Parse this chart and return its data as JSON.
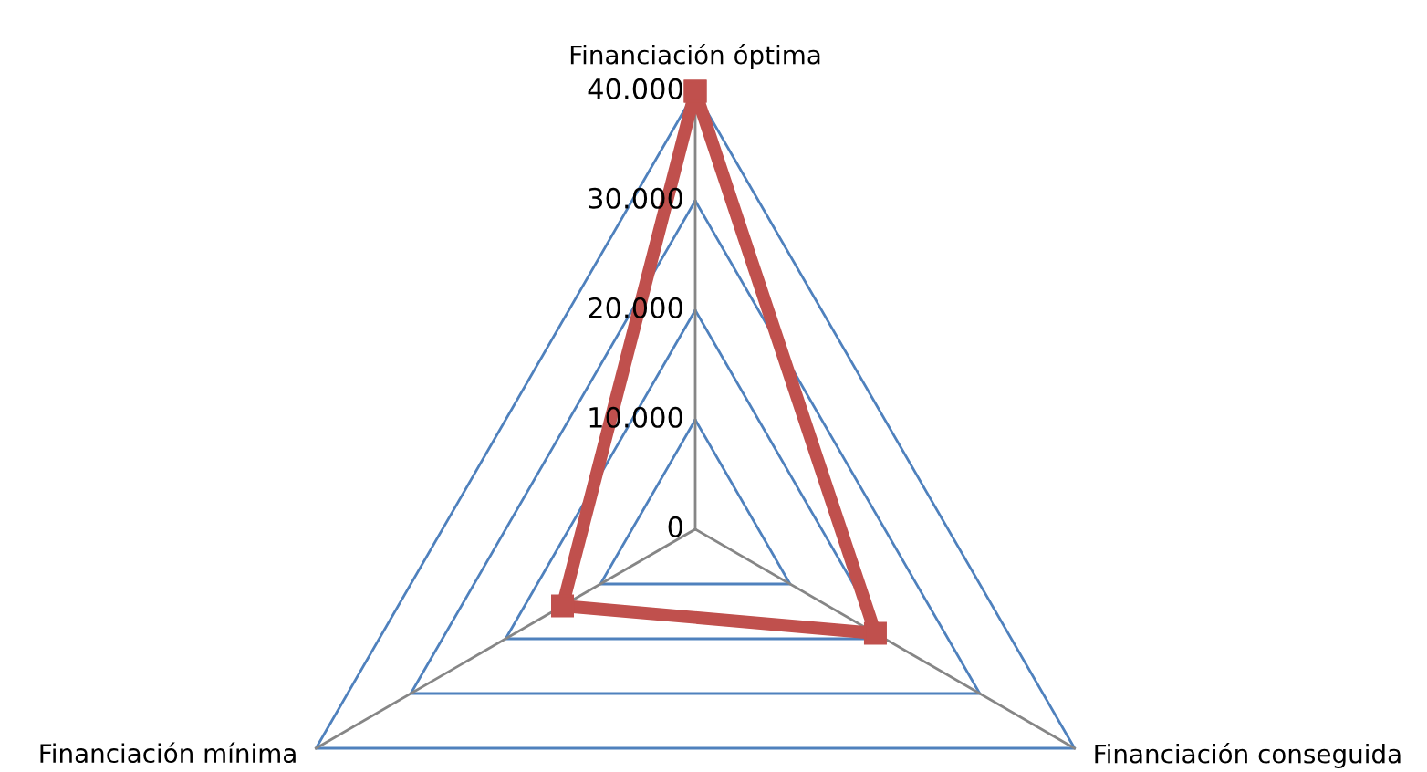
{
  "chart_data": {
    "type": "radar",
    "categories": [
      "Financiación óptima",
      "Financiación conseguida",
      "Financiación mínima"
    ],
    "series": [
      {
        "color": "#c0504d",
        "values": [
          40000,
          19000,
          14000
        ]
      }
    ],
    "ylim": [
      0,
      40000
    ],
    "yticks": [
      {
        "value": 0,
        "label": "0"
      },
      {
        "value": 10000,
        "label": "10.000"
      },
      {
        "value": 20000,
        "label": "20.000"
      },
      {
        "value": 30000,
        "label": "30.000"
      },
      {
        "value": 40000,
        "label": "40.000"
      }
    ],
    "grid": true,
    "marker": "square",
    "line_style": "solid"
  }
}
